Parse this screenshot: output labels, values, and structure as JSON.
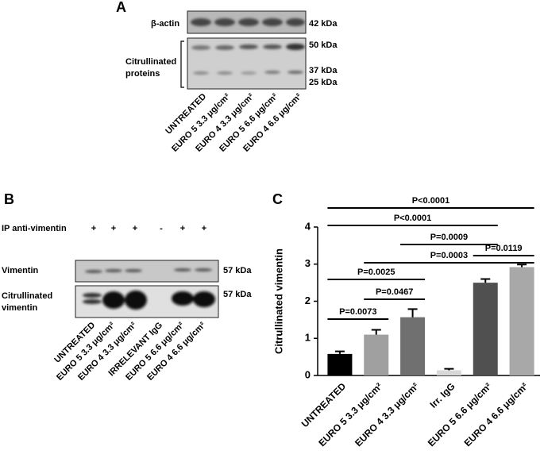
{
  "panel_a": {
    "letter": "A",
    "rows": [
      {
        "label": [
          "β-actin"
        ],
        "markers": [
          "42 kDa"
        ]
      },
      {
        "label": [
          "Citrullinated",
          "proteins"
        ],
        "markers": [
          "50 kDa",
          "37 kDa",
          "25 kDa"
        ]
      }
    ],
    "lanes": [
      "UNTREATED",
      "EURO 5 3.3 μg/cm²",
      "EURO 4 3.3 μg/cm²",
      "EURO 5 6.6 μg/cm²",
      "EURO 4 6.6 μg/cm²"
    ]
  },
  "panel_b": {
    "letter": "B",
    "ip_label": "IP anti-vimentin",
    "ip_signs": [
      "+",
      "+",
      "+",
      "-",
      "+",
      "+"
    ],
    "rows": [
      {
        "label": [
          "Vimentin"
        ],
        "marker": "57 kDa"
      },
      {
        "label": [
          "Citrullinated",
          "vimentin"
        ],
        "marker": "57 kDa"
      }
    ],
    "lanes": [
      "UNTREATED",
      "EURO 5 3.3 μg/cm²",
      "EURO 4 3.3 μg/cm²",
      "IRRELEVANT IgG",
      "EURO 5 6.6 μg/cm²",
      "EURO 4 6.6 μg/cm²"
    ]
  },
  "chart_data": {
    "type": "bar",
    "panel": "C",
    "y_label": "Citrullinated vimentin",
    "categories": [
      "UNTREATED",
      "EURO 5 3.3 μg/cm²",
      "EURO 4 3.3 μg/cm²",
      "Irr. IgG",
      "EURO 5 6.6 μg/cm²",
      "EURO 4 6.6 μg/cm²"
    ],
    "values": [
      0.58,
      1.1,
      1.57,
      0.14,
      2.5,
      2.92
    ],
    "errors": [
      0.07,
      0.13,
      0.22,
      0.04,
      0.1,
      0.07
    ],
    "colors": [
      "#000000",
      "#a0a0a0",
      "#707070",
      "#d8d8d8",
      "#505050",
      "#a8a8a8"
    ],
    "ylim": [
      0,
      4
    ],
    "yticks": [
      0,
      1,
      2,
      3,
      4
    ],
    "annotations": [
      "P<0.0001",
      "P<0.0001",
      "P=0.0009",
      "P=0.0119",
      "P=0.0003",
      "P=0.0025",
      "P=0.0467",
      "P=0.0073"
    ]
  }
}
